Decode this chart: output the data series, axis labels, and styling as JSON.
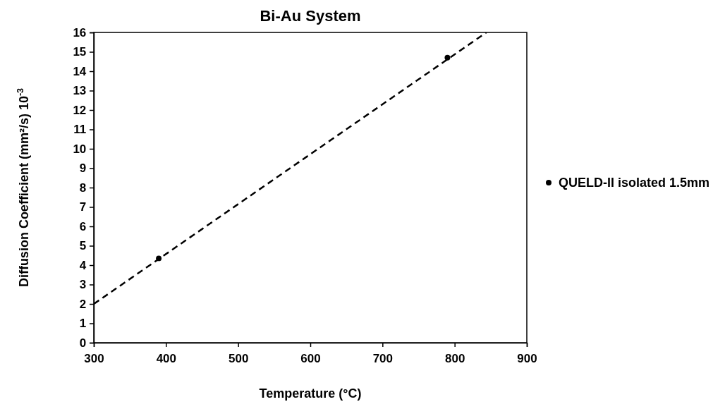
{
  "chart_data": {
    "type": "scatter",
    "title": "Bi-Au System",
    "xlabel": "Temperature (°C)",
    "ylabel": "Diffusion Coefficient (mm²/s) 10$^{-3}$",
    "xlim": [
      300,
      900
    ],
    "xticks": [
      300,
      400,
      500,
      600,
      700,
      800,
      900
    ],
    "ylim": [
      0,
      16
    ],
    "yticks": [
      0,
      1,
      2,
      3,
      4,
      5,
      6,
      7,
      8,
      9,
      10,
      11,
      12,
      13,
      14,
      15,
      16
    ],
    "grid": false,
    "legend": "right",
    "marker": "circle",
    "series": [
      {
        "name": "QUELD-II isolated 1.5mm",
        "color": "#000000",
        "x": [
          390,
          790
        ],
        "values": [
          4.35,
          14.7
        ]
      },
      {
        "type": "line",
        "color": "#000000",
        "line_style": "dashed",
        "marker": "none",
        "x": [
          300,
          844
        ],
        "values": [
          2,
          16
        ]
      }
    ]
  }
}
